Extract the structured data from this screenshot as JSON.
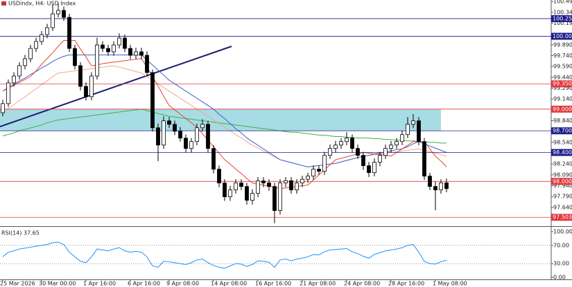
{
  "header": "USDindx, H4: USD Index",
  "chart_data": [
    {
      "type": "candlestick",
      "categories": [
        "25 Mar 2026",
        null,
        null,
        null,
        null,
        null,
        null,
        "30 Mar 00:00",
        null,
        null,
        null,
        null,
        null,
        null,
        null,
        "1 Apr 16:00",
        null,
        null,
        null,
        null,
        null,
        null,
        null,
        "6 Apr 16:00",
        null,
        null,
        null,
        null,
        null,
        null,
        "9 Apr 08:00",
        null,
        null,
        null,
        null,
        null,
        null,
        null,
        "14 Apr 08:00",
        null,
        null,
        null,
        null,
        null,
        null,
        null,
        "16 Apr 16:00",
        null,
        null,
        null,
        null,
        null,
        null,
        null,
        "21 Apr 08:00",
        null,
        null,
        null,
        null,
        null,
        null,
        null,
        "24 Apr 08:00",
        null,
        null,
        null,
        null,
        null,
        null,
        null,
        "28 Apr 16:00",
        null,
        null,
        null,
        null,
        null,
        null,
        null,
        "1 May 08:00",
        null,
        null
      ],
      "open": [
        98.95,
        99.076,
        99.363,
        99.458,
        99.602,
        99.697,
        99.84,
        99.936,
        100.031,
        100.127,
        100.318,
        100.366,
        100.27,
        99.84,
        99.602,
        99.315,
        99.172,
        99.458,
        99.888,
        99.84,
        99.793,
        99.888,
        99.984,
        99.84,
        99.745,
        99.793,
        99.745,
        99.506,
        98.742,
        98.503,
        98.838,
        98.79,
        98.694,
        98.599,
        98.456,
        98.551,
        98.742,
        98.79,
        98.456,
        98.169,
        97.978,
        97.787,
        97.882,
        97.978,
        97.93,
        97.739,
        97.835,
        98.007,
        97.978,
        97.93,
        97.596,
        97.978,
        98.01,
        97.882,
        97.978,
        98.03,
        98.073,
        98.169,
        98.14,
        98.36,
        98.456,
        98.503,
        98.551,
        98.599,
        98.456,
        98.36,
        98.217,
        98.121,
        98.265,
        98.36,
        98.456,
        98.503,
        98.551,
        98.647,
        98.79,
        98.838,
        98.551,
        98.073,
        97.93,
        97.882,
        97.98
      ],
      "high": [
        99.13,
        99.41,
        99.51,
        99.65,
        99.75,
        99.89,
        99.99,
        100.08,
        100.18,
        100.45,
        100.47,
        100.42,
        100.32,
        99.89,
        99.65,
        99.37,
        99.51,
        99.99,
        99.94,
        99.89,
        99.94,
        100.05,
        100.03,
        99.89,
        99.85,
        99.85,
        99.8,
        99.55,
        98.8,
        98.9,
        98.89,
        98.84,
        98.75,
        98.65,
        98.6,
        98.8,
        98.86,
        98.84,
        98.5,
        98.22,
        98.03,
        97.94,
        98.03,
        98.03,
        97.98,
        97.89,
        98.06,
        98.06,
        98.03,
        97.98,
        98.03,
        98.06,
        98.06,
        98.03,
        98.08,
        98.12,
        98.22,
        98.22,
        98.41,
        98.51,
        98.56,
        98.6,
        98.68,
        98.65,
        98.51,
        98.41,
        98.27,
        98.32,
        98.41,
        98.51,
        98.56,
        98.6,
        98.7,
        98.89,
        98.93,
        98.89,
        98.6,
        98.12,
        98.0,
        98.03,
        98.04
      ],
      "low": [
        98.9,
        99.03,
        99.31,
        99.41,
        99.55,
        99.65,
        99.79,
        99.89,
        99.98,
        100.08,
        100.27,
        100.22,
        99.79,
        99.55,
        99.26,
        99.12,
        99.12,
        99.41,
        99.79,
        99.74,
        99.74,
        99.84,
        99.79,
        99.69,
        99.69,
        99.69,
        99.45,
        98.69,
        98.28,
        98.45,
        98.74,
        98.64,
        98.55,
        98.4,
        98.4,
        98.5,
        98.69,
        98.4,
        98.11,
        97.92,
        97.73,
        97.73,
        97.83,
        97.88,
        97.68,
        97.68,
        97.78,
        97.92,
        97.87,
        97.42,
        97.54,
        97.92,
        97.83,
        97.83,
        97.92,
        97.98,
        98.02,
        98.09,
        98.09,
        98.31,
        98.4,
        98.45,
        98.5,
        98.4,
        98.31,
        98.16,
        98.06,
        98.07,
        98.21,
        98.31,
        98.4,
        98.45,
        98.5,
        98.6,
        98.74,
        98.5,
        98.02,
        97.88,
        97.6,
        97.83,
        97.85
      ],
      "close": [
        99.076,
        99.363,
        99.458,
        99.602,
        99.697,
        99.84,
        99.936,
        100.031,
        100.127,
        100.318,
        100.366,
        100.27,
        99.84,
        99.602,
        99.315,
        99.172,
        99.458,
        99.888,
        99.84,
        99.793,
        99.888,
        99.984,
        99.84,
        99.745,
        99.793,
        99.745,
        99.506,
        98.742,
        98.503,
        98.838,
        98.79,
        98.694,
        98.599,
        98.456,
        98.551,
        98.742,
        98.79,
        98.456,
        98.169,
        97.978,
        97.787,
        97.882,
        97.978,
        97.93,
        97.739,
        97.835,
        98.007,
        97.978,
        97.93,
        97.596,
        97.978,
        98.01,
        97.882,
        97.978,
        98.03,
        98.073,
        98.169,
        98.14,
        98.36,
        98.456,
        98.503,
        98.551,
        98.599,
        98.456,
        98.36,
        98.217,
        98.121,
        98.265,
        98.36,
        98.456,
        98.503,
        98.551,
        98.647,
        98.79,
        98.838,
        98.551,
        98.073,
        97.93,
        97.882,
        97.98,
        97.9
      ],
      "moving_averages": [
        {
          "color": "#3cb043",
          "values": [
            98.63,
            98.65,
            98.67,
            98.7,
            98.72,
            98.74,
            98.76,
            98.78,
            98.81,
            98.83,
            98.85,
            98.86,
            98.87,
            98.88,
            98.89,
            98.9,
            98.91,
            98.92,
            98.93,
            98.94,
            98.95,
            98.96,
            98.97,
            98.98,
            98.99,
            99.0,
            98.98,
            98.96,
            98.94,
            98.92,
            98.9,
            98.89,
            98.88,
            98.87,
            98.86,
            98.85,
            98.84,
            98.83,
            98.82,
            98.81,
            98.8,
            98.79,
            98.78,
            98.77,
            98.76,
            98.75,
            98.74,
            98.73,
            98.72,
            98.71,
            98.7,
            98.69,
            98.68,
            98.68,
            98.67,
            98.66,
            98.65,
            98.64,
            98.64,
            98.63,
            98.62,
            98.62,
            98.61,
            98.61,
            98.6,
            98.6,
            98.6,
            98.59,
            98.59,
            98.58,
            98.58,
            98.57,
            98.57,
            98.56,
            98.56,
            98.55,
            98.55,
            98.54,
            98.54,
            98.53,
            98.53
          ]
        },
        {
          "color": "#f4a58a",
          "values": [
            98.95,
            99.01,
            99.06,
            99.12,
            99.17,
            99.23,
            99.28,
            99.34,
            99.39,
            99.45,
            99.5,
            99.51,
            99.52,
            99.53,
            99.54,
            99.55,
            99.56,
            99.57,
            99.58,
            99.59,
            99.6,
            99.58,
            99.56,
            99.54,
            99.52,
            99.5,
            99.45,
            99.4,
            99.35,
            99.3,
            99.25,
            99.2,
            99.15,
            99.1,
            99.05,
            99.0,
            98.95,
            98.9,
            98.85,
            98.8,
            98.75,
            98.7,
            98.65,
            98.6,
            98.55,
            98.5,
            98.46,
            98.42,
            98.38,
            98.34,
            98.3,
            98.28,
            98.26,
            98.24,
            98.22,
            98.2,
            98.21,
            98.22,
            98.23,
            98.24,
            98.25,
            98.27,
            98.29,
            98.31,
            98.33,
            98.35,
            98.36,
            98.37,
            98.38,
            98.39,
            98.4,
            98.41,
            98.42,
            98.43,
            98.44,
            98.45,
            98.43,
            98.41,
            98.39,
            98.37,
            98.35
          ]
        },
        {
          "color": "#3a5fcd",
          "values": [
            99.25,
            99.3,
            99.34,
            99.39,
            99.43,
            99.48,
            99.52,
            99.57,
            99.61,
            99.66,
            99.7,
            99.73,
            99.75,
            99.75,
            99.75,
            99.75,
            99.75,
            99.75,
            99.75,
            99.75,
            99.75,
            99.75,
            99.75,
            99.75,
            99.75,
            99.75,
            99.68,
            99.61,
            99.54,
            99.47,
            99.4,
            99.35,
            99.3,
            99.25,
            99.2,
            99.15,
            99.1,
            99.05,
            99.0,
            98.93,
            98.87,
            98.8,
            98.73,
            98.67,
            98.6,
            98.55,
            98.5,
            98.45,
            98.4,
            98.35,
            98.3,
            98.28,
            98.26,
            98.24,
            98.22,
            98.2,
            98.21,
            98.22,
            98.23,
            98.24,
            98.25,
            98.27,
            98.29,
            98.31,
            98.33,
            98.35,
            98.36,
            98.38,
            98.39,
            98.41,
            98.42,
            98.44,
            98.45,
            98.48,
            98.52,
            98.55,
            98.52,
            98.49,
            98.46,
            98.43,
            98.4
          ]
        },
        {
          "color": "#e8432f",
          "values": [
            99.25,
            99.29,
            99.33,
            99.37,
            99.41,
            99.45,
            99.53,
            99.62,
            99.7,
            99.78,
            99.87,
            99.95,
            99.95,
            99.95,
            99.83,
            99.72,
            99.6,
            99.61,
            99.63,
            99.64,
            99.65,
            99.66,
            99.67,
            99.68,
            99.69,
            99.7,
            99.58,
            99.45,
            99.32,
            99.18,
            99.05,
            98.99,
            98.93,
            98.87,
            98.81,
            98.75,
            98.66,
            98.57,
            98.48,
            98.39,
            98.3,
            98.24,
            98.17,
            98.11,
            98.04,
            97.98,
            97.96,
            97.95,
            97.93,
            97.92,
            97.9,
            97.91,
            97.92,
            97.93,
            97.94,
            97.95,
            98.02,
            98.09,
            98.16,
            98.23,
            98.3,
            98.32,
            98.34,
            98.36,
            98.38,
            98.4,
            98.39,
            98.38,
            98.37,
            98.36,
            98.35,
            98.4,
            98.45,
            98.5,
            98.55,
            98.55,
            98.55,
            98.45,
            98.35,
            98.28,
            98.2
          ]
        }
      ],
      "levels": [
        {
          "value": 100.252,
          "label": "100.252",
          "color": "#1c1c8c"
        },
        {
          "value": 100.008,
          "label": "100.008",
          "color": "#1c1c8c"
        },
        {
          "value": 99.35,
          "label": "99.350",
          "color": "#e0363c"
        },
        {
          "value": 99.0,
          "label": "99.000",
          "color": "#e0363c"
        },
        {
          "value": 98.7,
          "label": "98.700",
          "color": "#1c1c8c"
        },
        {
          "value": 98.4,
          "label": "98.400",
          "color": "#1c1c8c"
        },
        {
          "value": 98.0,
          "label": "98.000",
          "color": "#e0363c"
        },
        {
          "value": 97.503,
          "label": "97.503",
          "color": "#e0363c"
        }
      ],
      "ylim": [
        97.4,
        100.51
      ],
      "yticks": [
        {
          "value": 100.49,
          "label": "100.490"
        },
        {
          "value": 100.34,
          "label": "100.340"
        },
        {
          "value": 100.19,
          "label": "100.190"
        },
        {
          "value": 99.89,
          "label": "99.890"
        },
        {
          "value": 99.74,
          "label": "99.740"
        },
        {
          "value": 99.59,
          "label": "99.590"
        },
        {
          "value": 99.44,
          "label": "99.440"
        },
        {
          "value": 99.29,
          "label": "99.290"
        },
        {
          "value": 99.14,
          "label": "99.140"
        },
        {
          "value": 98.84,
          "label": "98.840"
        },
        {
          "value": 98.54,
          "label": "98.540"
        },
        {
          "value": 98.24,
          "label": "98.240"
        },
        {
          "value": 98.09,
          "label": "98.090"
        },
        {
          "value": 97.94,
          "label": "97.940"
        },
        {
          "value": 97.79,
          "label": "97.790"
        },
        {
          "value": 97.64,
          "label": "97.640"
        }
      ]
    },
    {
      "type": "line",
      "title": "RSI(14) 37.65",
      "color": "#1e90ff",
      "values": [
        45,
        55,
        58,
        62,
        64,
        66,
        68,
        70,
        72,
        76,
        77,
        72,
        55,
        45,
        35,
        32,
        45,
        62,
        60,
        58,
        62,
        65,
        58,
        55,
        57,
        55,
        45,
        25,
        22,
        35,
        34,
        32,
        30,
        28,
        32,
        38,
        40,
        32,
        26,
        22,
        20,
        25,
        30,
        29,
        24,
        28,
        36,
        35,
        33,
        22,
        38,
        40,
        36,
        40,
        42,
        45,
        50,
        49,
        56,
        60,
        61,
        62,
        63,
        56,
        52,
        46,
        42,
        50,
        54,
        58,
        60,
        62,
        65,
        70,
        72,
        55,
        35,
        30,
        29,
        34,
        37.65
      ],
      "ylim": [
        0,
        100
      ],
      "yticks": [
        {
          "value": 100,
          "label": "100.00"
        },
        {
          "value": 70,
          "label": "70.00"
        },
        {
          "value": 30,
          "label": "30.00"
        },
        {
          "value": 0,
          "label": "0.00"
        }
      ],
      "levels": [
        70,
        30
      ]
    }
  ]
}
